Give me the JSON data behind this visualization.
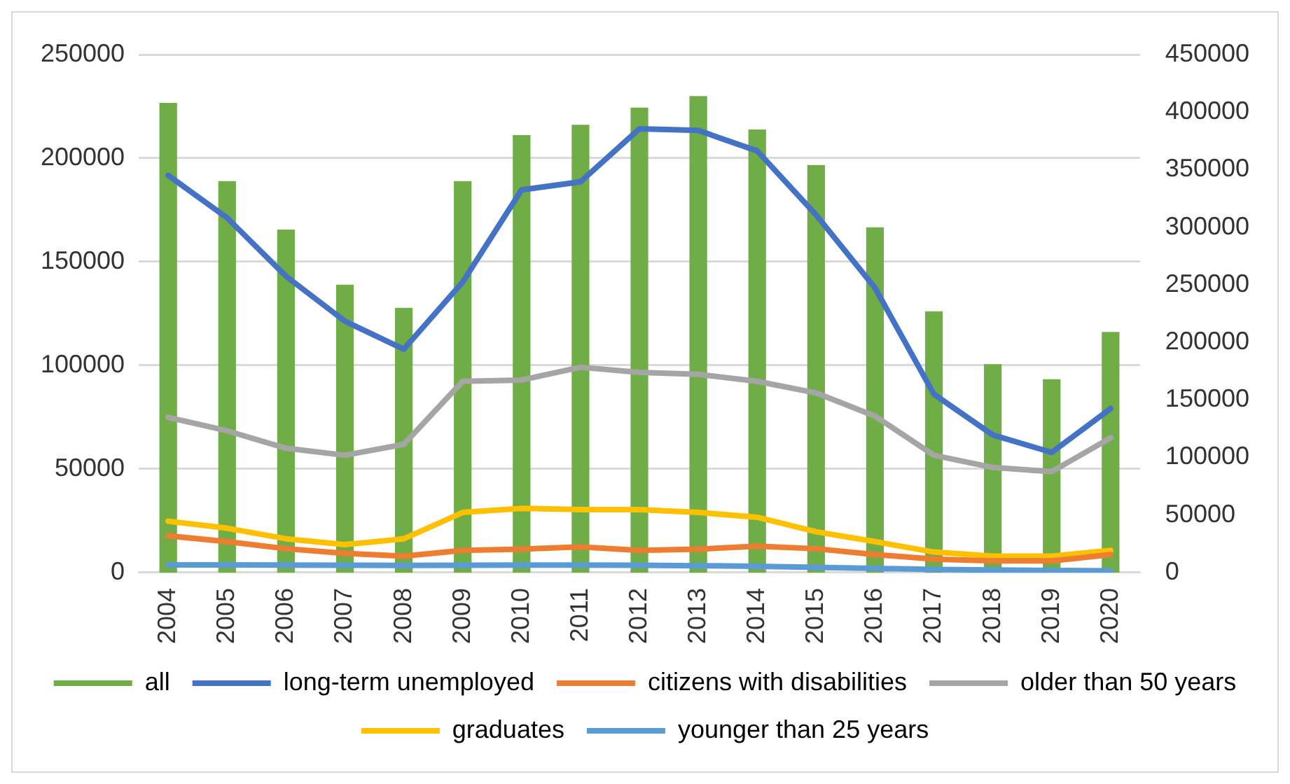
{
  "chart_data": {
    "type": "bar",
    "categories": [
      "2004",
      "2005",
      "2006",
      "2007",
      "2008",
      "2009",
      "2010",
      "2011",
      "2012",
      "2013",
      "2014",
      "2015",
      "2016",
      "2017",
      "2018",
      "2019",
      "2020"
    ],
    "series": [
      {
        "name": "all",
        "axis": "y2",
        "color": "#70ad47",
        "values": [
          408000,
          340000,
          298000,
          250000,
          230000,
          340000,
          380000,
          389000,
          404000,
          414000,
          385000,
          354000,
          300000,
          227000,
          181000,
          168000,
          209000
        ]
      },
      {
        "name": "long-term unemployed",
        "type": "line",
        "color": "#4472c4",
        "values": [
          191700,
          171200,
          143000,
          121300,
          107800,
          140200,
          184700,
          188600,
          214200,
          213400,
          203500,
          172600,
          137400,
          86100,
          66400,
          58000,
          79100
        ]
      },
      {
        "name": "citizens with disabilities",
        "type": "line",
        "color": "#ed7d31",
        "values": [
          17700,
          14900,
          11500,
          9300,
          7900,
          10700,
          11300,
          12400,
          10700,
          11300,
          12700,
          11500,
          8700,
          6500,
          5600,
          5600,
          8700
        ]
      },
      {
        "name": "older than 50 years",
        "type": "line",
        "color": "#a5a5a5",
        "values": [
          74900,
          68400,
          60000,
          56600,
          61900,
          92300,
          92900,
          99100,
          96600,
          95700,
          92300,
          86700,
          75500,
          56600,
          50700,
          48700,
          65000
        ]
      },
      {
        "name": "graduates",
        "type": "line",
        "color": "#ffc000",
        "values": [
          24800,
          21400,
          16300,
          13500,
          16300,
          29000,
          31000,
          30400,
          30400,
          29000,
          26700,
          19700,
          14900,
          9900,
          7900,
          7900,
          10700
        ]
      },
      {
        "name": "younger than 25 years",
        "type": "line",
        "color": "#5b9bd5",
        "values": [
          3700,
          3700,
          3600,
          3500,
          3400,
          3500,
          3600,
          3600,
          3500,
          3300,
          3000,
          2500,
          2000,
          1500,
          1200,
          1000,
          800
        ]
      }
    ],
    "ylim": [
      0,
      250000
    ],
    "yticks": [
      0,
      50000,
      100000,
      150000,
      200000,
      250000
    ],
    "y2lim": [
      0,
      450000
    ],
    "y2ticks": [
      0,
      50000,
      100000,
      150000,
      200000,
      250000,
      300000,
      350000,
      400000,
      450000
    ],
    "grid": "y",
    "legend": "bottom",
    "marker": "none",
    "line_style": "solid"
  }
}
